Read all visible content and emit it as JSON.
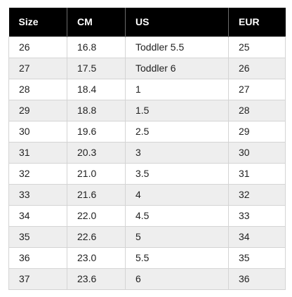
{
  "table": {
    "headers": [
      "Size",
      "CM",
      "US",
      "EUR"
    ],
    "rows": [
      [
        "26",
        "16.8",
        "Toddler 5.5",
        "25"
      ],
      [
        "27",
        "17.5",
        "Toddler 6",
        "26"
      ],
      [
        "28",
        "18.4",
        "1",
        "27"
      ],
      [
        "29",
        "18.8",
        "1.5",
        "28"
      ],
      [
        "30",
        "19.6",
        "2.5",
        "29"
      ],
      [
        "31",
        "20.3",
        "3",
        "30"
      ],
      [
        "32",
        "21.0",
        "3.5",
        "31"
      ],
      [
        "33",
        "21.6",
        "4",
        "32"
      ],
      [
        "34",
        "22.0",
        "4.5",
        "33"
      ],
      [
        "35",
        "22.6",
        "5",
        "34"
      ],
      [
        "36",
        "23.0",
        "5.5",
        "35"
      ],
      [
        "37",
        "23.6",
        "6",
        "36"
      ]
    ]
  },
  "colors": {
    "header_bg": "#000000",
    "header_text": "#ffffff",
    "stripe": "#eeeeee",
    "border": "#d4d4d4"
  }
}
